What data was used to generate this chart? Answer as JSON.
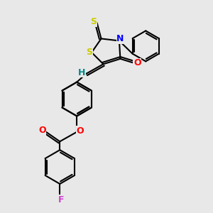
{
  "background_color": "#e8e8e8",
  "atom_colors": {
    "S": "#cccc00",
    "N": "#0000ff",
    "O": "#ff0000",
    "F": "#cc44cc",
    "H": "#008888",
    "C": "#000000"
  },
  "line_color": "#000000",
  "line_width": 1.5,
  "font_size": 9,
  "dbo": 0.08,
  "figsize": [
    3.0,
    3.0
  ],
  "dpi": 100,
  "xlim": [
    0,
    10
  ],
  "ylim": [
    0,
    10
  ]
}
